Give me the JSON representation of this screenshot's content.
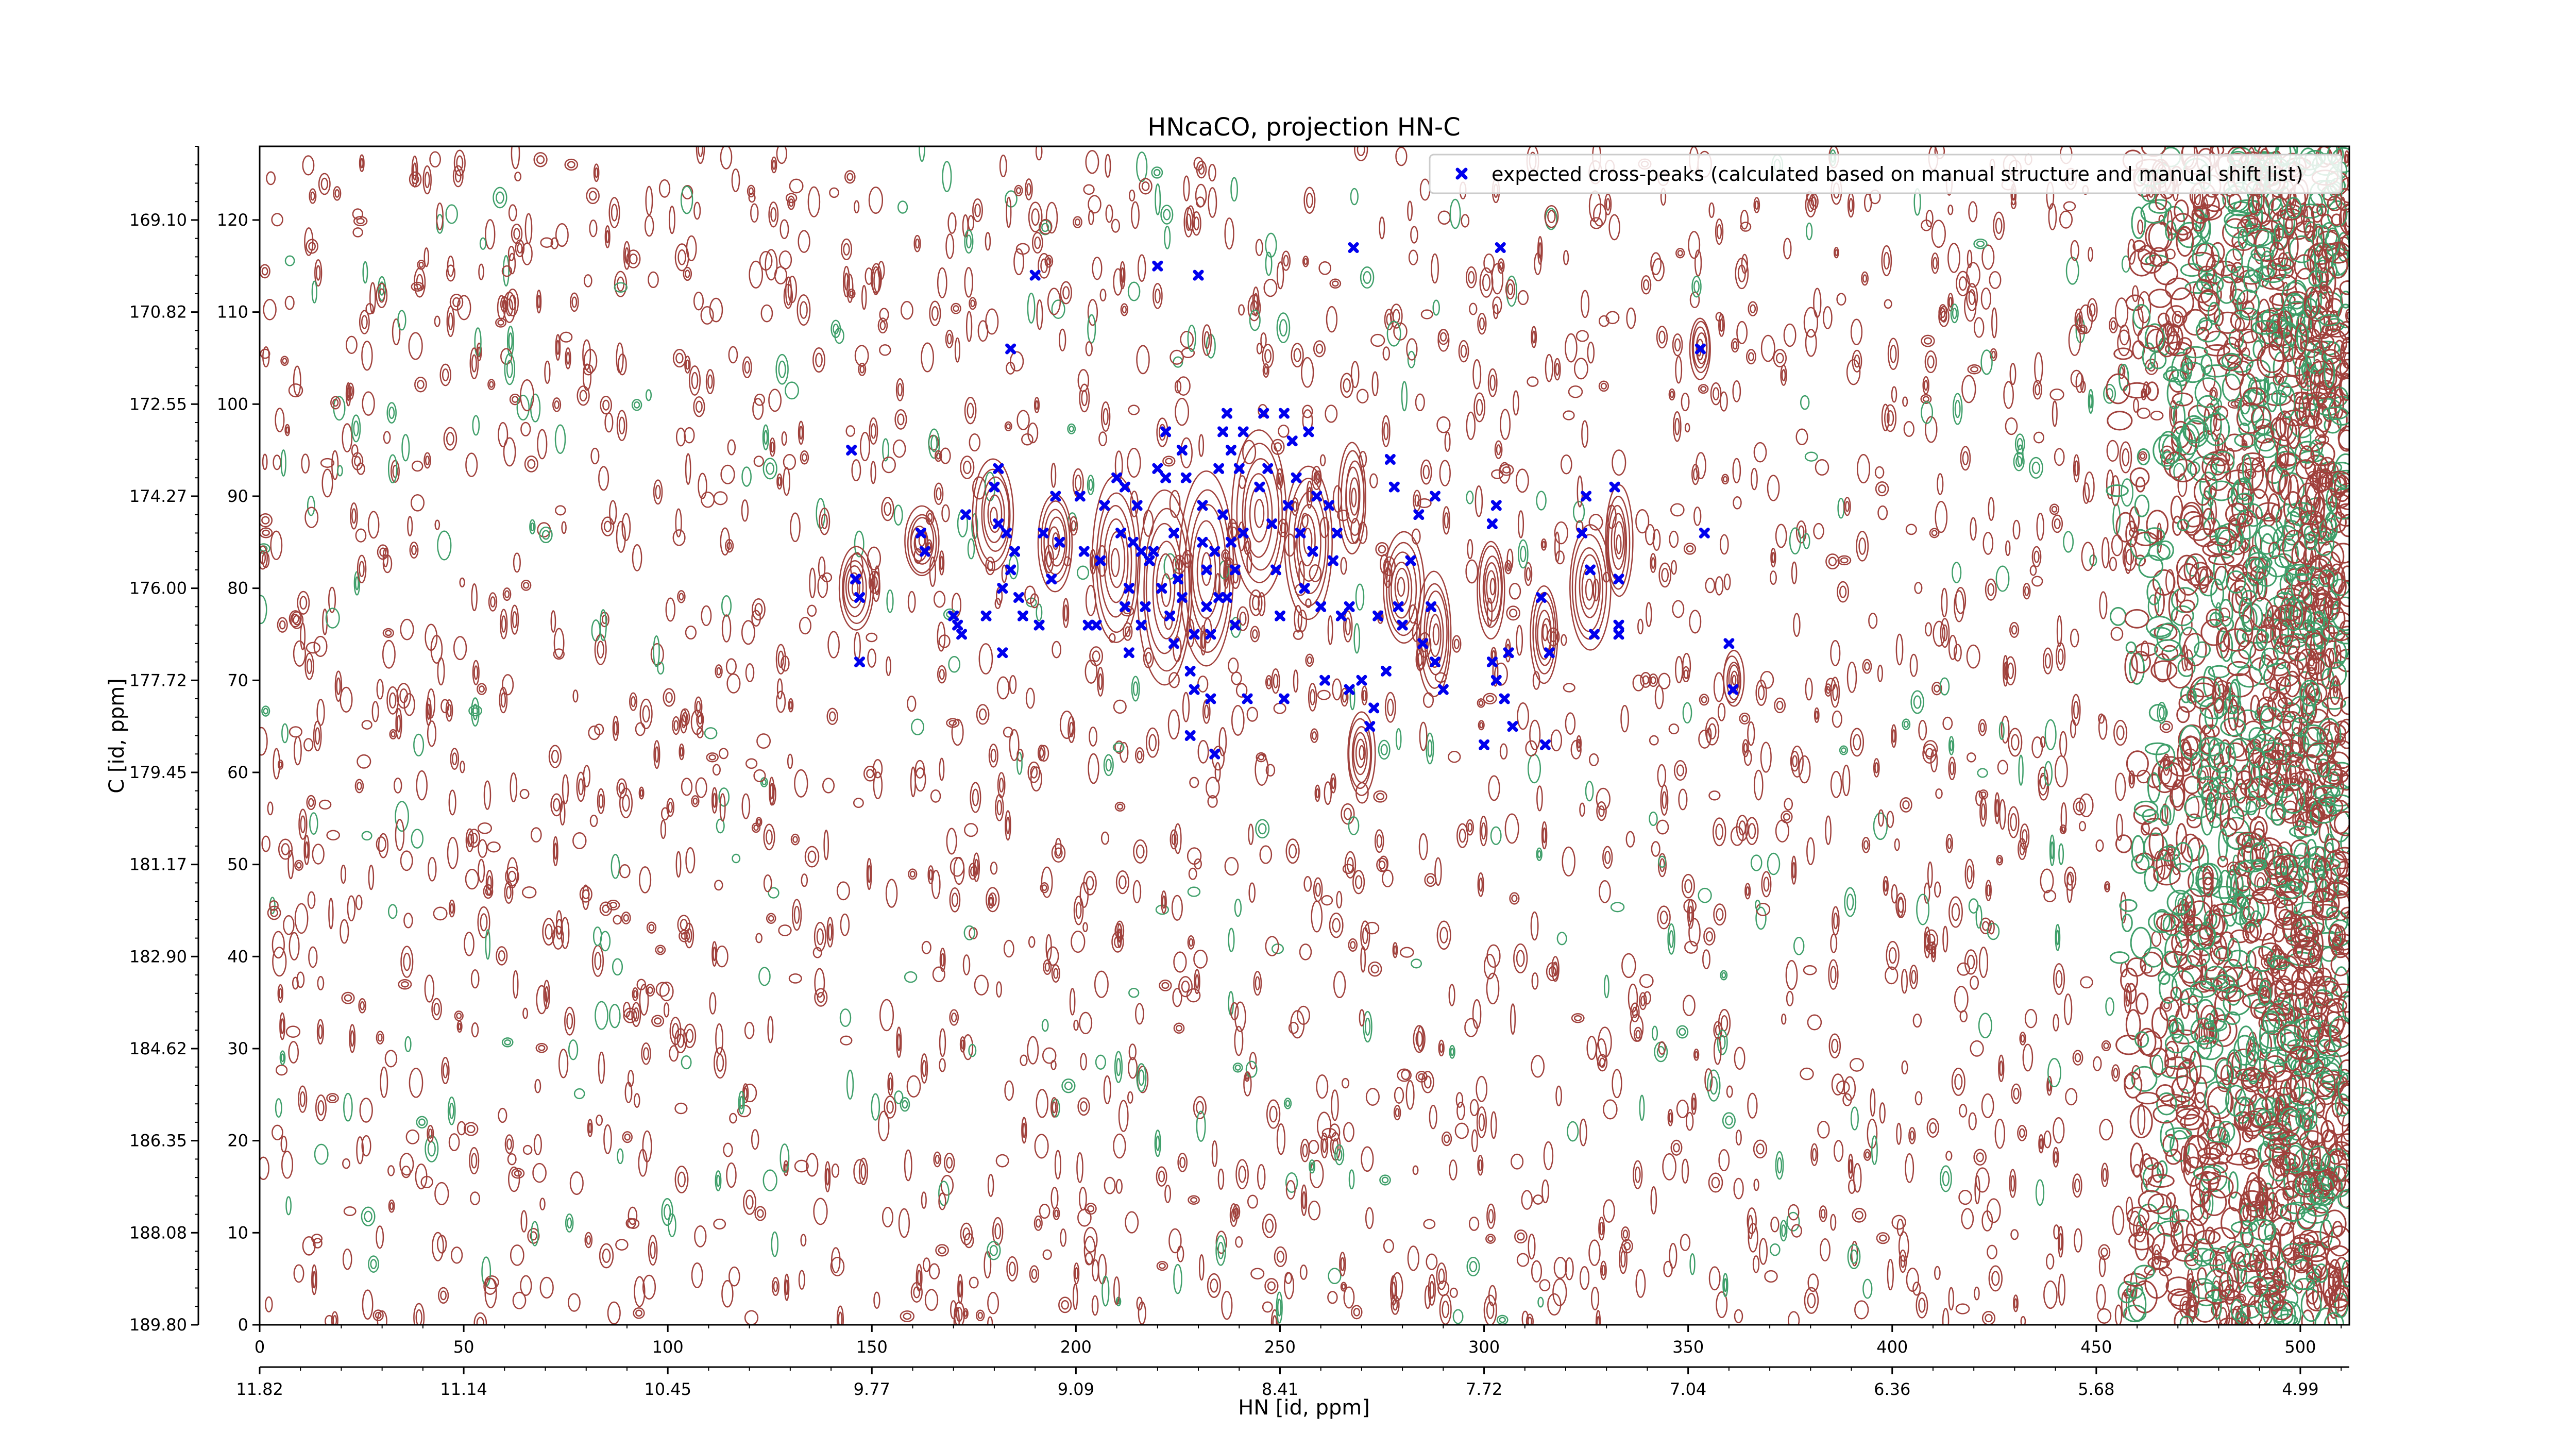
{
  "chart_data": {
    "type": "scatter",
    "title": "HNcaCO, projection HN-C",
    "xlabel": "HN [id, ppm]",
    "ylabel": "C [id, ppm]",
    "xlim": [
      0,
      512
    ],
    "ylim": [
      0,
      128
    ],
    "x_ticks": [
      0,
      50,
      100,
      150,
      200,
      250,
      300,
      350,
      400,
      450,
      500
    ],
    "y_ticks": [
      0,
      10,
      20,
      30,
      40,
      50,
      60,
      70,
      80,
      90,
      100,
      110,
      120
    ],
    "secondary_x_ticks": [
      {
        "pos": 0,
        "label": "11.82"
      },
      {
        "pos": 50,
        "label": "11.14"
      },
      {
        "pos": 100,
        "label": "10.45"
      },
      {
        "pos": 150,
        "label": "9.77"
      },
      {
        "pos": 200,
        "label": "9.09"
      },
      {
        "pos": 250,
        "label": "8.41"
      },
      {
        "pos": 300,
        "label": "7.72"
      },
      {
        "pos": 350,
        "label": "7.04"
      },
      {
        "pos": 400,
        "label": "6.36"
      },
      {
        "pos": 450,
        "label": "5.68"
      },
      {
        "pos": 500,
        "label": "4.99"
      }
    ],
    "secondary_y_ticks": [
      {
        "pos": 0,
        "label": "189.80"
      },
      {
        "pos": 10,
        "label": "188.08"
      },
      {
        "pos": 20,
        "label": "186.35"
      },
      {
        "pos": 30,
        "label": "184.62"
      },
      {
        "pos": 40,
        "label": "182.90"
      },
      {
        "pos": 50,
        "label": "181.17"
      },
      {
        "pos": 60,
        "label": "179.45"
      },
      {
        "pos": 70,
        "label": "177.72"
      },
      {
        "pos": 80,
        "label": "176.00"
      },
      {
        "pos": 90,
        "label": "174.27"
      },
      {
        "pos": 100,
        "label": "172.55"
      },
      {
        "pos": 110,
        "label": "170.82"
      },
      {
        "pos": 120,
        "label": "169.10"
      }
    ],
    "legend_position": "top-right",
    "colors": {
      "positive_contour": "#a0413c",
      "negative_contour": "#3f9f6a",
      "marker": "#0000ee"
    },
    "series": [
      {
        "name": "expected cross-peaks (calculated based on manual structure and manual shift list)",
        "marker": "x",
        "points": [
          [
            145,
            95
          ],
          [
            146,
            81
          ],
          [
            147,
            79
          ],
          [
            147,
            72
          ],
          [
            162,
            86
          ],
          [
            163,
            84
          ],
          [
            170,
            77
          ],
          [
            171,
            76
          ],
          [
            172,
            75
          ],
          [
            173,
            88
          ],
          [
            178,
            77
          ],
          [
            180,
            91
          ],
          [
            181,
            93
          ],
          [
            181,
            87
          ],
          [
            182,
            80
          ],
          [
            182,
            73
          ],
          [
            183,
            86
          ],
          [
            184,
            106
          ],
          [
            184,
            82
          ],
          [
            185,
            84
          ],
          [
            186,
            79
          ],
          [
            187,
            77
          ],
          [
            190,
            114
          ],
          [
            191,
            76
          ],
          [
            192,
            86
          ],
          [
            194,
            81
          ],
          [
            195,
            90
          ],
          [
            196,
            85
          ],
          [
            201,
            90
          ],
          [
            202,
            84
          ],
          [
            203,
            76
          ],
          [
            205,
            76
          ],
          [
            206,
            83
          ],
          [
            207,
            89
          ],
          [
            210,
            92
          ],
          [
            211,
            86
          ],
          [
            212,
            91
          ],
          [
            212,
            78
          ],
          [
            213,
            80
          ],
          [
            213,
            73
          ],
          [
            214,
            85
          ],
          [
            215,
            89
          ],
          [
            216,
            84
          ],
          [
            216,
            76
          ],
          [
            217,
            78
          ],
          [
            218,
            83
          ],
          [
            219,
            84
          ],
          [
            220,
            93
          ],
          [
            220,
            115
          ],
          [
            221,
            80
          ],
          [
            222,
            97
          ],
          [
            222,
            92
          ],
          [
            223,
            77
          ],
          [
            224,
            74
          ],
          [
            224,
            86
          ],
          [
            225,
            81
          ],
          [
            226,
            79
          ],
          [
            226,
            95
          ],
          [
            227,
            92
          ],
          [
            228,
            71
          ],
          [
            228,
            64
          ],
          [
            229,
            75
          ],
          [
            229,
            69
          ],
          [
            230,
            114
          ],
          [
            231,
            89
          ],
          [
            231,
            85
          ],
          [
            232,
            82
          ],
          [
            232,
            78
          ],
          [
            233,
            75
          ],
          [
            233,
            68
          ],
          [
            234,
            62
          ],
          [
            234,
            84
          ],
          [
            235,
            93
          ],
          [
            235,
            79
          ],
          [
            236,
            88
          ],
          [
            236,
            97
          ],
          [
            237,
            99
          ],
          [
            237,
            79
          ],
          [
            238,
            95
          ],
          [
            238,
            85
          ],
          [
            239,
            82
          ],
          [
            239,
            76
          ],
          [
            240,
            93
          ],
          [
            241,
            97
          ],
          [
            241,
            86
          ],
          [
            242,
            68
          ],
          [
            245,
            91
          ],
          [
            246,
            99
          ],
          [
            247,
            93
          ],
          [
            248,
            87
          ],
          [
            249,
            82
          ],
          [
            250,
            77
          ],
          [
            251,
            99
          ],
          [
            251,
            68
          ],
          [
            252,
            89
          ],
          [
            253,
            96
          ],
          [
            254,
            92
          ],
          [
            255,
            86
          ],
          [
            256,
            80
          ],
          [
            257,
            97
          ],
          [
            258,
            84
          ],
          [
            259,
            90
          ],
          [
            260,
            78
          ],
          [
            261,
            70
          ],
          [
            262,
            89
          ],
          [
            263,
            83
          ],
          [
            264,
            86
          ],
          [
            265,
            77
          ],
          [
            267,
            78
          ],
          [
            267,
            69
          ],
          [
            268,
            117
          ],
          [
            270,
            70
          ],
          [
            272,
            65
          ],
          [
            273,
            67
          ],
          [
            274,
            77
          ],
          [
            276,
            71
          ],
          [
            277,
            94
          ],
          [
            278,
            91
          ],
          [
            279,
            78
          ],
          [
            280,
            76
          ],
          [
            282,
            83
          ],
          [
            284,
            88
          ],
          [
            285,
            74
          ],
          [
            287,
            78
          ],
          [
            288,
            72
          ],
          [
            288,
            90
          ],
          [
            290,
            69
          ],
          [
            300,
            63
          ],
          [
            302,
            72
          ],
          [
            302,
            87
          ],
          [
            303,
            89
          ],
          [
            303,
            70
          ],
          [
            304,
            117
          ],
          [
            305,
            68
          ],
          [
            306,
            73
          ],
          [
            307,
            65
          ],
          [
            314,
            79
          ],
          [
            315,
            63
          ],
          [
            316,
            73
          ],
          [
            324,
            86
          ],
          [
            325,
            90
          ],
          [
            326,
            82
          ],
          [
            327,
            75
          ],
          [
            332,
            91
          ],
          [
            333,
            76
          ],
          [
            333,
            81
          ],
          [
            333,
            75
          ],
          [
            353,
            106
          ],
          [
            354,
            86
          ],
          [
            360,
            74
          ],
          [
            361,
            69
          ]
        ]
      }
    ]
  }
}
